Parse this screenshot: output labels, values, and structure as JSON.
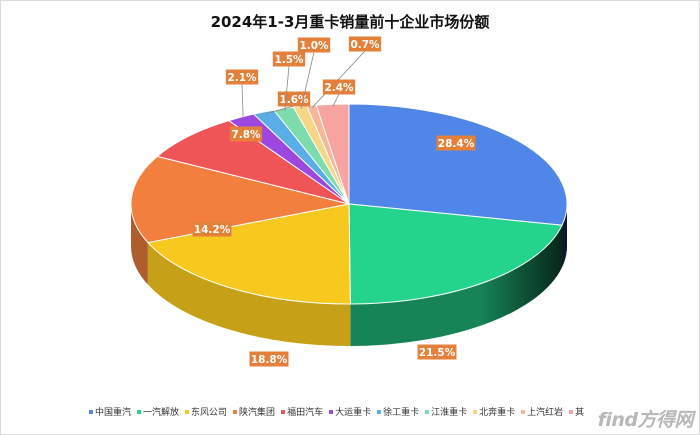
{
  "chart_data": {
    "type": "pie",
    "title": "2024年1-3月重卡销量前十企业市场份额",
    "categories": [
      "中国重汽",
      "一汽解放",
      "东风公司",
      "陕汽集团",
      "福田汽车",
      "大运重卡",
      "徐工重卡",
      "江淮重卡",
      "北奔重卡",
      "上汽红岩",
      "其他"
    ],
    "values": [
      28.4,
      21.5,
      18.8,
      14.2,
      7.8,
      2.1,
      1.6,
      1.5,
      1.0,
      0.7,
      2.4
    ],
    "labels": [
      "28.4%",
      "21.5%",
      "18.8%",
      "14.2%",
      "7.8%",
      "2.1%",
      "1.6%",
      "1.5%",
      "1.0%",
      "0.7%",
      "2.4%"
    ],
    "colors": [
      "#4f86e8",
      "#24d48c",
      "#f7c91e",
      "#f27f3e",
      "#ef5457",
      "#9b47e0",
      "#5aaee8",
      "#7ddcab",
      "#f5d785",
      "#f6b697",
      "#f7a4a1"
    ],
    "legend_position": "bottom",
    "legend_labels": [
      "中国重汽",
      "一汽解放",
      "东风公司",
      "陕汽集团",
      "福田汽车",
      "大运重卡",
      "徐工重卡",
      "江淮重卡",
      "北奔重卡",
      "上汽红岩",
      "其他"
    ],
    "legend_visible_text": [
      "中国重汽",
      "一汽解放",
      "东风公司",
      "陕汽集团",
      "福田汽车",
      "大运重卡",
      "徐工重卡",
      "江淮重卡",
      "北奔重卡",
      "上汽红岩",
      "其"
    ]
  },
  "watermark": "find方得网",
  "label_box_color": "#e4803a"
}
